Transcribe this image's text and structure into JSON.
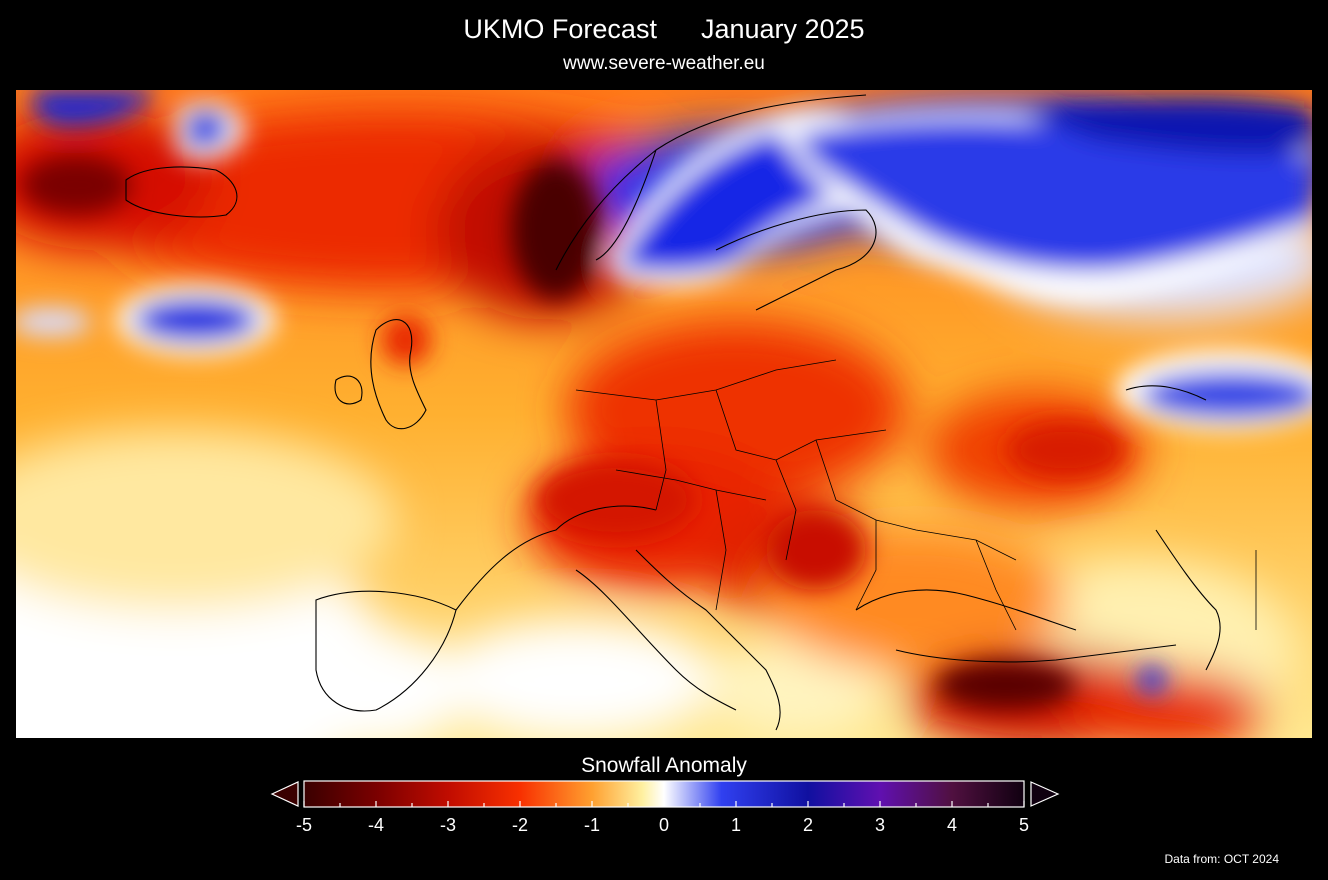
{
  "header": {
    "title_left": "UKMO Forecast",
    "title_right": "January 2025",
    "subtitle": "www.severe-weather.eu"
  },
  "map": {
    "region": "Europe",
    "variable": "Snowfall Anomaly",
    "colors": {
      "strong_deficit": "#3a0000",
      "deficit": "#e02000",
      "slight_deficit": "#ff9a20",
      "near_normal": "#fff4b0",
      "zero": "#ffffff",
      "surplus": "#1a2ee0",
      "strong_surplus": "#4a0a6a"
    }
  },
  "legend": {
    "title": "Snowfall Anomaly",
    "ticks": [
      "-5",
      "-4",
      "-3",
      "-2",
      "-1",
      "0",
      "1",
      "2",
      "3",
      "4",
      "5"
    ]
  },
  "footer": {
    "source": "Data from: OCT 2024"
  }
}
